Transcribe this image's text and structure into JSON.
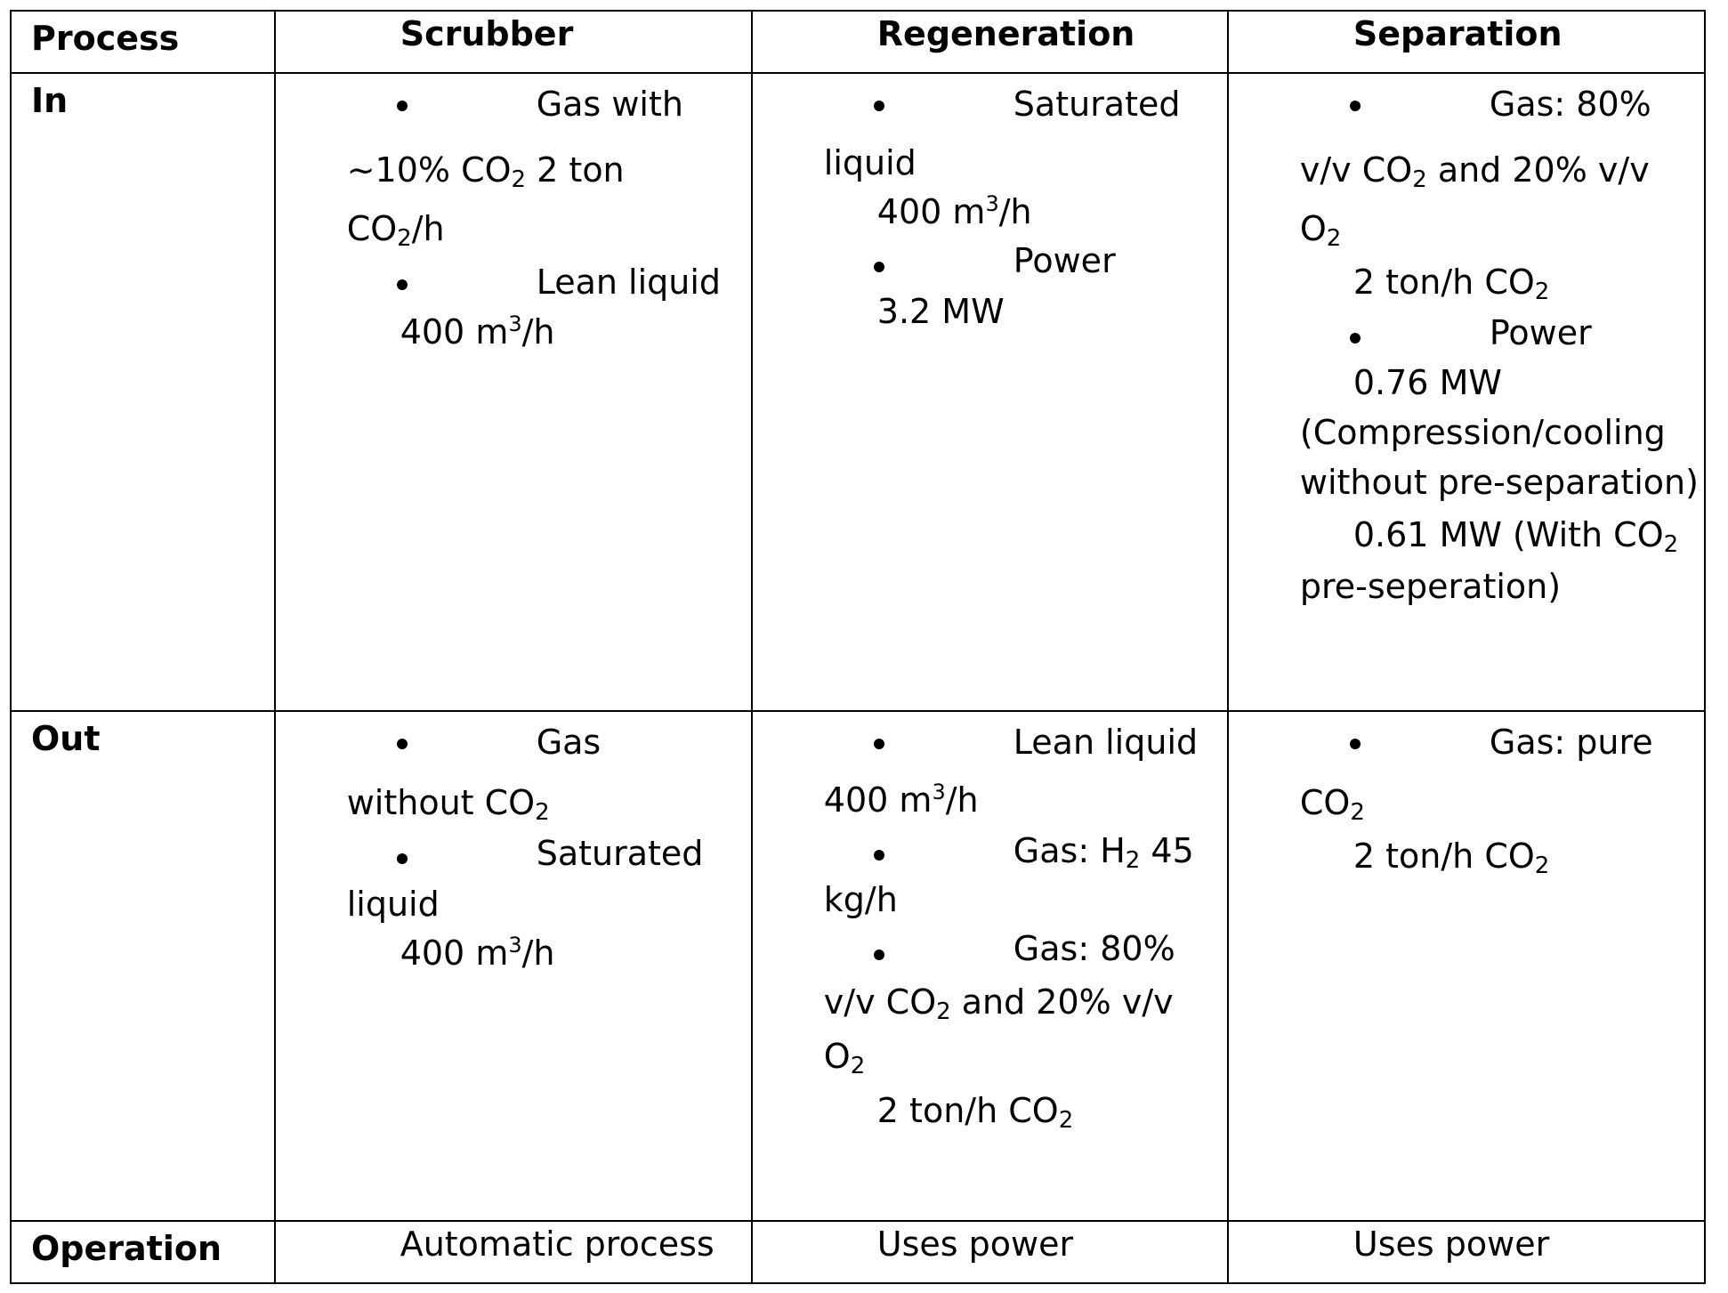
{
  "headers": {
    "process": "Process",
    "scrubber": "Scrubber",
    "regeneration": "Regeneration",
    "separation": "Separation"
  },
  "rows": {
    "in": "In",
    "out": "Out",
    "operation": "Operation"
  },
  "scrubber_in": {
    "b1_head": "Gas with",
    "b1_l2_pre": "~10% CO",
    "b1_l2_sub": "2",
    "b1_l2_post": " 2 ton",
    "b1_l3_pre": "CO",
    "b1_l3_sub": "2",
    "b1_l3_post": "/h",
    "b2_head": "Lean liquid",
    "b2_l2_pre": "400 m",
    "b2_l2_sup": "3",
    "b2_l2_post": "/h"
  },
  "regeneration_in": {
    "b1_head": "Saturated",
    "b1_l2": "liquid",
    "b1_l3_pre": "400 m",
    "b1_l3_sup": "3",
    "b1_l3_post": "/h",
    "b2_head": "Power",
    "b2_l2": "3.2 MW"
  },
  "separation_in": {
    "b1_head": "Gas: 80%",
    "b1_l2_pre": "v/v CO",
    "b1_l2_sub": "2",
    "b1_l2_post": " and 20% v/v",
    "b1_l3_pre": "O",
    "b1_l3_sub": "2",
    "b1_l4_pre": "2 ton/h CO",
    "b1_l4_sub": "2",
    "b2_head": "Power",
    "b2_l2": "0.76 MW",
    "b2_l3": "(Compression/cooling",
    "b2_l4": "without pre-separation)",
    "b2_l5_pre": "0.61 MW (With CO",
    "b2_l5_sub": "2",
    "b2_l6": "pre-seperation)"
  },
  "scrubber_out": {
    "b1_head": "Gas",
    "b1_l2_pre": "without CO",
    "b1_l2_sub": "2",
    "b2_head": "Saturated",
    "b2_l2": "liquid",
    "b2_l3_pre": "400 m",
    "b2_l3_sup": "3",
    "b2_l3_post": "/h"
  },
  "regeneration_out": {
    "b1_head": "Lean liquid",
    "b1_l2_pre": "400 m",
    "b1_l2_sup": "3",
    "b1_l2_post": "/h",
    "b2_head_pre": "Gas: H",
    "b2_head_sub": "2",
    "b2_head_post": " 45",
    "b2_l2": "kg/h",
    "b3_head": "Gas: 80%",
    "b3_l2_pre": "v/v CO",
    "b3_l2_sub": "2",
    "b3_l2_post": " and 20% v/v",
    "b3_l3_pre": "O",
    "b3_l3_sub": "2",
    "b3_l4_pre": "2 ton/h CO",
    "b3_l4_sub": "2"
  },
  "separation_out": {
    "b1_head": "Gas: pure",
    "b1_l2_pre": "CO",
    "b1_l2_sub": "2",
    "b1_l3_pre": "2 ton/h CO",
    "b1_l3_sub": "2"
  },
  "operation": {
    "scrubber": "Automatic process",
    "regeneration": "Uses power",
    "separation": "Uses power"
  }
}
